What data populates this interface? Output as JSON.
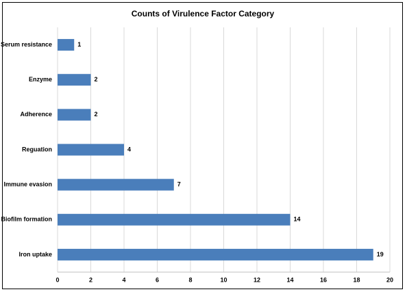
{
  "chart_data": {
    "type": "bar",
    "orientation": "horizontal",
    "title": "Counts of Virulence Factor Category",
    "categories": [
      "Serum resistance",
      "Enzyme",
      "Adherence",
      "Reguation",
      "Immune evasion",
      "Biofilm formation",
      "Iron uptake"
    ],
    "values": [
      1,
      2,
      2,
      4,
      7,
      14,
      19
    ],
    "color": "#4a7ebb",
    "xlim": [
      0,
      20
    ],
    "xticks": [
      0,
      2,
      4,
      6,
      8,
      10,
      12,
      14,
      16,
      18,
      20
    ],
    "grid": true
  }
}
